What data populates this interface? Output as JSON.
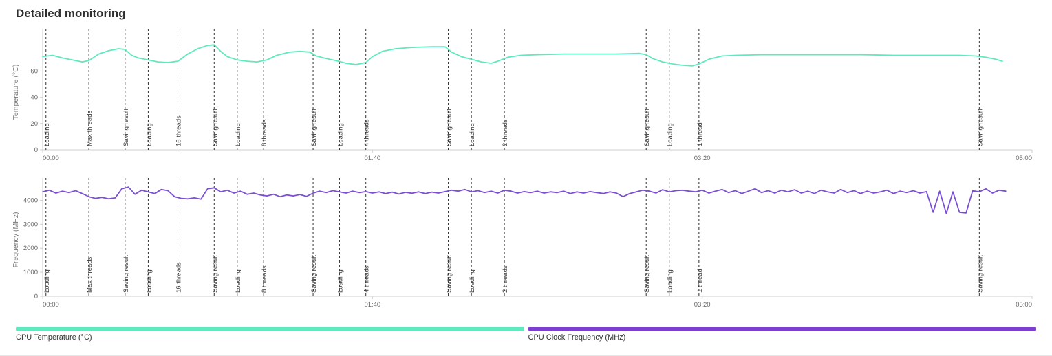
{
  "page": {
    "title": "Detailed monitoring"
  },
  "legend": {
    "items": [
      {
        "label": "CPU Temperature (°C)",
        "color": "#5fe9be"
      },
      {
        "label": "CPU Clock Frequency (MHz)",
        "color": "#7d3fd1"
      }
    ]
  },
  "chart_data": [
    {
      "type": "line",
      "name": "cpu-temperature",
      "title": "",
      "xlabel": "",
      "ylabel": "Temperature (°C)",
      "color": "#5fe9be",
      "ylim": [
        0,
        88
      ],
      "yticks": [
        0,
        20,
        40,
        60
      ],
      "xlim": [
        0,
        300
      ],
      "xticks": [
        {
          "x": 0,
          "label": "00:00"
        },
        {
          "x": 100,
          "label": "01:40"
        },
        {
          "x": 200,
          "label": "03:20"
        },
        {
          "x": 300,
          "label": "05:00"
        }
      ],
      "grid": false,
      "markers": [
        {
          "t": 1,
          "label": "Loading"
        },
        {
          "t": 14,
          "label": "Max threads"
        },
        {
          "t": 25,
          "label": "Saving result"
        },
        {
          "t": 32,
          "label": "Loading"
        },
        {
          "t": 41,
          "label": "16 threads"
        },
        {
          "t": 52,
          "label": "Saving result"
        },
        {
          "t": 59,
          "label": "Loading"
        },
        {
          "t": 67,
          "label": "8 threads"
        },
        {
          "t": 82,
          "label": "Saving result"
        },
        {
          "t": 90,
          "label": "Loading"
        },
        {
          "t": 98,
          "label": "4 threads"
        },
        {
          "t": 123,
          "label": "Saving result"
        },
        {
          "t": 130,
          "label": "Loading"
        },
        {
          "t": 140,
          "label": "2 threads"
        },
        {
          "t": 183,
          "label": "Saving result"
        },
        {
          "t": 190,
          "label": "Loading"
        },
        {
          "t": 199,
          "label": "1 thread"
        },
        {
          "t": 284,
          "label": "Saving result"
        }
      ],
      "points": [
        [
          0,
          71
        ],
        [
          3,
          72
        ],
        [
          6,
          70
        ],
        [
          9,
          68.5
        ],
        [
          12,
          67
        ],
        [
          14,
          68
        ],
        [
          17,
          73
        ],
        [
          20,
          75.5
        ],
        [
          23,
          77
        ],
        [
          25,
          76.5
        ],
        [
          27,
          72
        ],
        [
          29,
          70
        ],
        [
          32,
          68.5
        ],
        [
          35,
          67
        ],
        [
          38,
          66.5
        ],
        [
          41,
          67.5
        ],
        [
          44,
          73
        ],
        [
          47,
          77
        ],
        [
          50,
          79.5
        ],
        [
          52,
          80
        ],
        [
          54,
          75
        ],
        [
          56,
          71
        ],
        [
          59,
          68.5
        ],
        [
          62,
          67.5
        ],
        [
          65,
          67
        ],
        [
          68,
          68.5
        ],
        [
          71,
          72
        ],
        [
          75,
          74.5
        ],
        [
          78,
          75
        ],
        [
          81,
          74.5
        ],
        [
          83,
          71.5
        ],
        [
          86,
          69.5
        ],
        [
          89,
          68
        ],
        [
          92,
          66
        ],
        [
          95,
          65
        ],
        [
          98,
          66.5
        ],
        [
          100,
          71
        ],
        [
          103,
          75
        ],
        [
          107,
          77
        ],
        [
          112,
          78
        ],
        [
          118,
          78.5
        ],
        [
          122,
          78.5
        ],
        [
          124,
          74.5
        ],
        [
          127,
          71
        ],
        [
          130,
          69
        ],
        [
          133,
          67
        ],
        [
          136,
          66
        ],
        [
          138,
          67.5
        ],
        [
          141,
          70.5
        ],
        [
          145,
          72
        ],
        [
          150,
          72.5
        ],
        [
          158,
          73
        ],
        [
          166,
          73
        ],
        [
          174,
          73
        ],
        [
          181,
          73.5
        ],
        [
          183,
          72.5
        ],
        [
          185,
          69.5
        ],
        [
          188,
          67
        ],
        [
          191,
          65.5
        ],
        [
          194,
          64.5
        ],
        [
          197,
          64
        ],
        [
          199,
          65.5
        ],
        [
          202,
          69
        ],
        [
          206,
          71.5
        ],
        [
          210,
          72
        ],
        [
          218,
          72.5
        ],
        [
          228,
          72.5
        ],
        [
          238,
          72.5
        ],
        [
          248,
          72.5
        ],
        [
          258,
          72
        ],
        [
          268,
          72
        ],
        [
          278,
          72
        ],
        [
          283,
          71.5
        ],
        [
          286,
          70.5
        ],
        [
          289,
          69
        ],
        [
          291,
          67.5
        ]
      ]
    },
    {
      "type": "line",
      "name": "cpu-clock-frequency",
      "title": "",
      "xlabel": "",
      "ylabel": "Frequency (MHz)",
      "color": "#7a4fd2",
      "ylim": [
        0,
        4700
      ],
      "yticks": [
        0,
        1000,
        2000,
        3000,
        4000
      ],
      "xlim": [
        0,
        300
      ],
      "xticks": [
        {
          "x": 0,
          "label": "00:00"
        },
        {
          "x": 100,
          "label": "01:40"
        },
        {
          "x": 200,
          "label": "03:20"
        },
        {
          "x": 300,
          "label": "05:00"
        }
      ],
      "grid": false,
      "markers": [
        {
          "t": 1,
          "label": "Loading"
        },
        {
          "t": 14,
          "label": "Max threads"
        },
        {
          "t": 25,
          "label": "Saving result"
        },
        {
          "t": 32,
          "label": "Loading"
        },
        {
          "t": 41,
          "label": "16 threads"
        },
        {
          "t": 52,
          "label": "Saving result"
        },
        {
          "t": 59,
          "label": "Loading"
        },
        {
          "t": 67,
          "label": "8 threads"
        },
        {
          "t": 82,
          "label": "Saving result"
        },
        {
          "t": 90,
          "label": "Loading"
        },
        {
          "t": 98,
          "label": "4 threads"
        },
        {
          "t": 123,
          "label": "Saving result"
        },
        {
          "t": 130,
          "label": "Loading"
        },
        {
          "t": 140,
          "label": "2 threads"
        },
        {
          "t": 183,
          "label": "Saving result"
        },
        {
          "t": 190,
          "label": "Loading"
        },
        {
          "t": 199,
          "label": "1 thread"
        },
        {
          "t": 284,
          "label": "Saving result"
        }
      ],
      "x_start": 0,
      "x_step": 2,
      "values": [
        4350,
        4420,
        4300,
        4380,
        4320,
        4400,
        4280,
        4150,
        4080,
        4120,
        4060,
        4100,
        4480,
        4550,
        4250,
        4420,
        4350,
        4280,
        4450,
        4400,
        4150,
        4080,
        4060,
        4100,
        4050,
        4480,
        4520,
        4350,
        4420,
        4300,
        4380,
        4250,
        4300,
        4220,
        4180,
        4250,
        4150,
        4220,
        4180,
        4240,
        4160,
        4300,
        4380,
        4320,
        4400,
        4350,
        4300,
        4380,
        4320,
        4360,
        4300,
        4350,
        4280,
        4340,
        4260,
        4330,
        4290,
        4350,
        4280,
        4340,
        4300,
        4360,
        4420,
        4380,
        4450,
        4350,
        4400,
        4320,
        4380,
        4300,
        4420,
        4380,
        4300,
        4360,
        4320,
        4380,
        4300,
        4350,
        4320,
        4380,
        4280,
        4350,
        4300,
        4360,
        4320,
        4280,
        4350,
        4300,
        4150,
        4280,
        4350,
        4420,
        4380,
        4300,
        4440,
        4350,
        4400,
        4420,
        4380,
        4350,
        4420,
        4300,
        4380,
        4450,
        4320,
        4400,
        4280,
        4380,
        4480,
        4320,
        4400,
        4300,
        4420,
        4350,
        4440,
        4300,
        4380,
        4280,
        4420,
        4350,
        4300,
        4450,
        4320,
        4400,
        4280,
        4380,
        4300,
        4350,
        4420,
        4280,
        4380,
        4320,
        4400,
        4300,
        4360,
        3500,
        4380,
        3450,
        4350,
        3500,
        3470,
        4400,
        4350,
        4480,
        4300,
        4420,
        4380
      ]
    }
  ]
}
